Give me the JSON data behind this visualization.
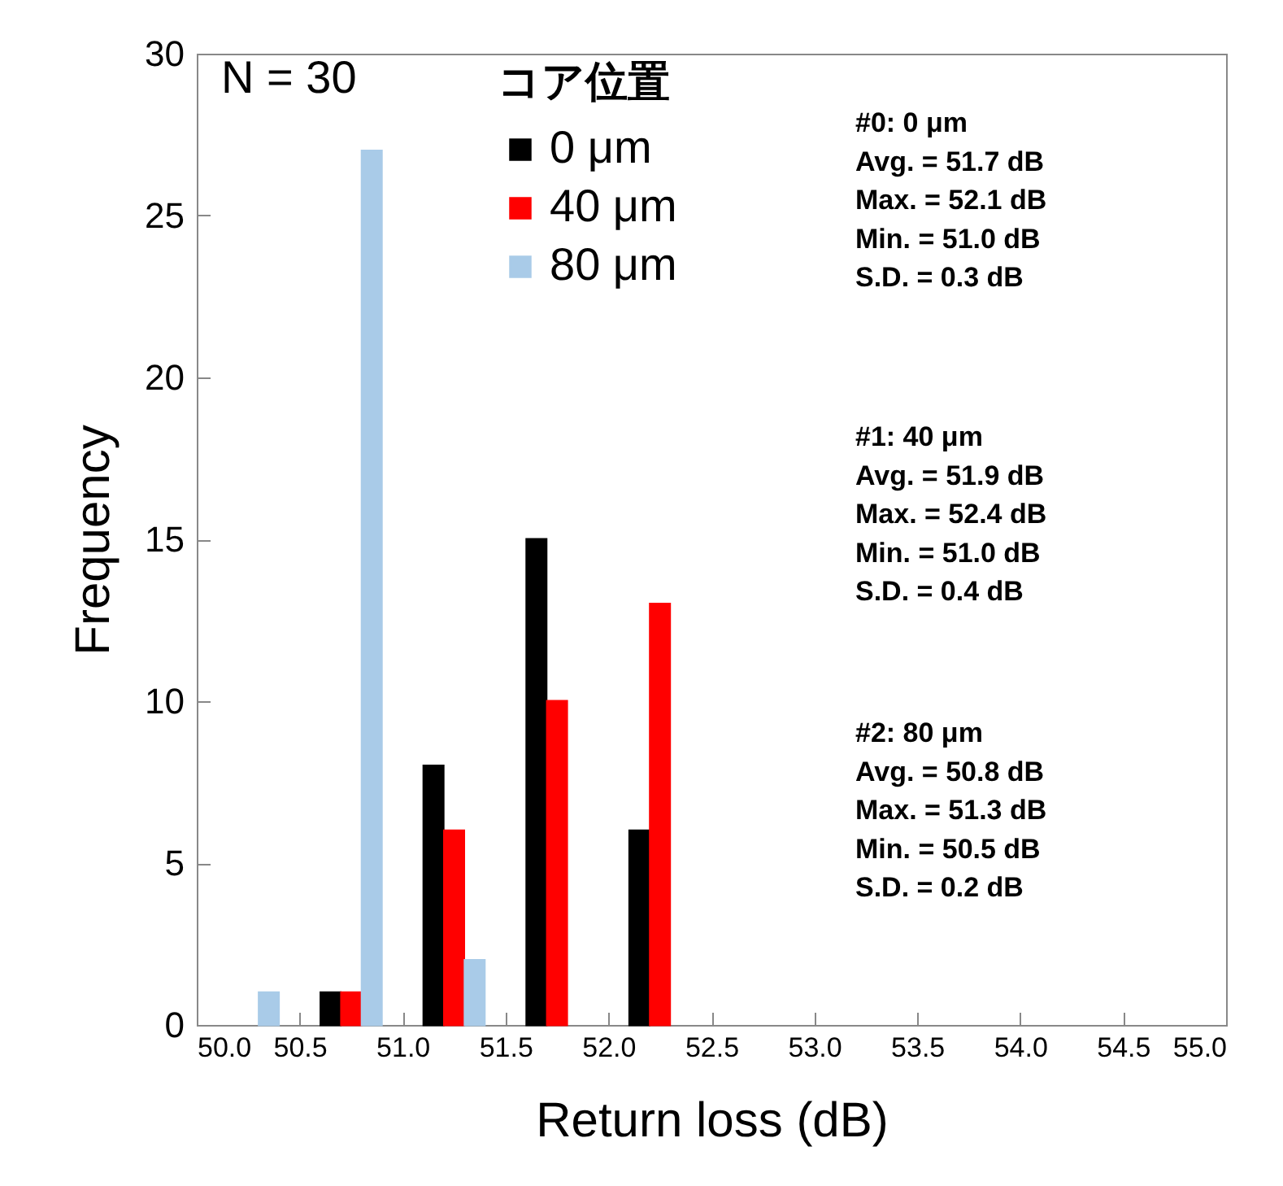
{
  "chart_data": {
    "type": "bar",
    "xlabel": "Return loss (dB)",
    "ylabel": "Frequency",
    "legend_title": "コア位置",
    "legend": "top",
    "series": [
      {
        "name": "0 μm",
        "color": "#000000",
        "x": [
          50.65,
          51.15,
          51.65,
          52.15
        ],
        "values": [
          1,
          8,
          15,
          6
        ]
      },
      {
        "name": "40 μm",
        "color": "#ff0000",
        "x": [
          50.75,
          51.25,
          51.75,
          52.25
        ],
        "values": [
          1,
          6,
          10,
          13
        ]
      },
      {
        "name": "80 μm",
        "color": "#a9cbe8",
        "x": [
          50.35,
          50.85,
          51.35
        ],
        "values": [
          1,
          27,
          2
        ]
      }
    ],
    "xlim": [
      50,
      55
    ],
    "xticks": [
      {
        "value": 50,
        "label": "50.0"
      },
      50.5,
      {
        "value": 51,
        "label": "51.0"
      },
      51.5,
      {
        "value": 52,
        "label": "52.0"
      },
      52.5,
      {
        "value": 53,
        "label": "53.0"
      },
      53.5,
      {
        "value": 54,
        "label": "54.0"
      },
      54.5,
      {
        "value": 55,
        "label": "55.0"
      }
    ],
    "ylim": [
      0,
      30
    ],
    "yticks": [
      0,
      5,
      10,
      15,
      20,
      25,
      30
    ],
    "annotations": [
      "N = 30",
      "#0: 0 μm\nAvg. = 51.7 dB\nMax. = 52.1 dB\nMin. = 51.0 dB\nS.D. = 0.3 dB",
      "#1: 40 μm\nAvg. = 51.9 dB\nMax. = 52.4 dB\nMin. = 51.0 dB\nS.D. = 0.4 dB",
      "#2: 80 μm\nAvg. = 50.8 dB\nMax. = 51.3 dB\nMin. = 50.5 dB\nS.D. = 0.2 dB"
    ]
  }
}
